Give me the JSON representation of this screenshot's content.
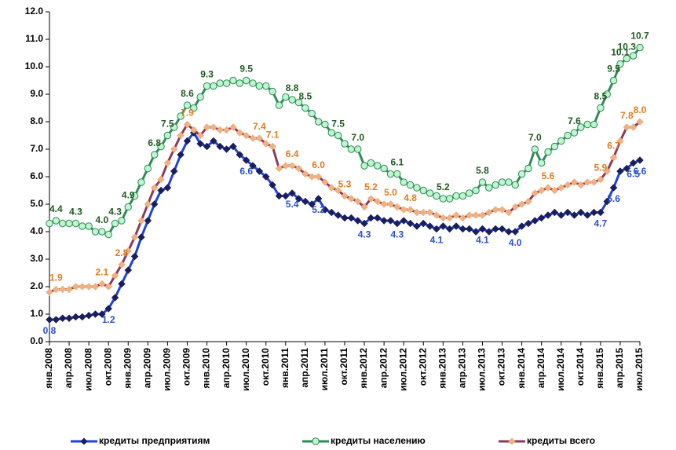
{
  "chart_data": {
    "type": "line",
    "categories": [
      "янв.2008",
      null,
      null,
      "апр.2008",
      null,
      null,
      "июл.2008",
      null,
      null,
      "окт.2008",
      null,
      null,
      "янв.2009",
      null,
      null,
      "апр.2009",
      null,
      null,
      "июл.2009",
      null,
      null,
      "окт.2009",
      null,
      null,
      "янв.2010",
      null,
      null,
      "апр.2010",
      null,
      null,
      "июл.2010",
      null,
      null,
      "окт.2010",
      null,
      null,
      "янв.2011",
      null,
      null,
      "апр.2011",
      null,
      null,
      "июл.2011",
      null,
      null,
      "окт.2011",
      null,
      null,
      "янв.2012",
      null,
      null,
      "апр.2012",
      null,
      null,
      "июл.2012",
      null,
      null,
      "окт.2012",
      null,
      null,
      "янв.2013",
      null,
      null,
      "апр.2013",
      null,
      null,
      "июл.2013",
      null,
      null,
      "окт.2013",
      null,
      null,
      "янв.2014",
      null,
      null,
      "апр.2014",
      null,
      null,
      "июл.2014",
      null,
      null,
      "окт.2014",
      null,
      null,
      "янв.2015",
      null,
      null,
      "апр.2015",
      null,
      null,
      "июл.2015"
    ],
    "ylim": [
      0,
      12
    ],
    "yticks": [
      {
        "value": 0,
        "label": "0.0"
      },
      {
        "value": 1,
        "label": "1.0"
      },
      {
        "value": 2,
        "label": "2.0"
      },
      {
        "value": 3,
        "label": "3.0"
      },
      {
        "value": 4,
        "label": "4.0"
      },
      {
        "value": 5,
        "label": "5.0"
      },
      {
        "value": 6,
        "label": "6.0"
      },
      {
        "value": 7,
        "label": "7.0"
      },
      {
        "value": 8,
        "label": "8.0"
      },
      {
        "value": 9,
        "label": "9.0"
      },
      {
        "value": 10,
        "label": "10.0"
      },
      {
        "value": 11,
        "label": "11.0"
      },
      {
        "value": 12,
        "label": "12.0"
      }
    ],
    "grid": false,
    "legend": "bottom",
    "series": [
      {
        "name": "кредиты предприятиям",
        "color": "#1f3fe0",
        "marker": "diamond",
        "marker_color": "#1a1f5a",
        "label_color": "#2a4fc8",
        "label_side": "below",
        "values": [
          0.8,
          0.8,
          0.85,
          0.85,
          0.9,
          0.9,
          0.95,
          1.0,
          1.0,
          1.2,
          1.6,
          2.1,
          2.6,
          3.1,
          3.8,
          4.4,
          5.0,
          5.5,
          5.6,
          6.2,
          6.8,
          7.3,
          7.6,
          7.2,
          7.1,
          7.3,
          7.1,
          7.0,
          7.1,
          6.8,
          6.6,
          6.4,
          6.2,
          6.0,
          5.7,
          5.3,
          5.3,
          5.4,
          5.2,
          5.1,
          5.0,
          5.2,
          4.8,
          4.7,
          4.6,
          4.5,
          4.5,
          4.4,
          4.3,
          4.5,
          4.5,
          4.4,
          4.4,
          4.3,
          4.4,
          4.3,
          4.2,
          4.3,
          4.2,
          4.1,
          4.2,
          4.1,
          4.2,
          4.1,
          4.1,
          4.0,
          4.1,
          4.0,
          4.1,
          4.1,
          4.0,
          4.0,
          4.2,
          4.3,
          4.4,
          4.5,
          4.6,
          4.7,
          4.6,
          4.7,
          4.6,
          4.7,
          4.6,
          4.7,
          4.7,
          5.1,
          5.6,
          6.2,
          6.3,
          6.5,
          6.6
        ],
        "value_labels": [
          "0.8",
          null,
          null,
          null,
          null,
          null,
          null,
          null,
          null,
          "1.2",
          null,
          null,
          null,
          null,
          null,
          null,
          null,
          null,
          null,
          null,
          null,
          null,
          null,
          null,
          null,
          null,
          null,
          null,
          null,
          null,
          "6.6",
          null,
          null,
          null,
          null,
          null,
          null,
          "5.4",
          null,
          null,
          null,
          "5.2",
          null,
          null,
          null,
          null,
          null,
          null,
          "4.3",
          null,
          null,
          null,
          null,
          "4.3",
          null,
          null,
          null,
          null,
          null,
          "4.1",
          null,
          null,
          null,
          null,
          null,
          null,
          "4.1",
          null,
          null,
          null,
          null,
          "4.0",
          null,
          null,
          null,
          null,
          null,
          null,
          null,
          null,
          null,
          null,
          null,
          null,
          "4.7",
          null,
          "5.6",
          null,
          null,
          "6.5",
          "6.6"
        ]
      },
      {
        "name": "кредиты населению",
        "color": "#2e8b57",
        "marker": "circle",
        "marker_color": "#bff5cf",
        "label_color": "#1f5a1f",
        "label_side": "above",
        "values": [
          4.3,
          4.4,
          4.3,
          4.3,
          4.3,
          4.2,
          4.2,
          4.0,
          4.0,
          3.9,
          4.3,
          4.4,
          4.9,
          5.3,
          5.8,
          6.3,
          6.8,
          7.1,
          7.5,
          7.8,
          8.2,
          8.6,
          8.5,
          8.9,
          9.3,
          9.3,
          9.4,
          9.4,
          9.5,
          9.4,
          9.5,
          9.4,
          9.3,
          9.3,
          9.1,
          8.6,
          8.9,
          8.8,
          8.7,
          8.5,
          8.3,
          8.0,
          7.9,
          7.6,
          7.5,
          7.2,
          7.0,
          7.0,
          6.4,
          6.5,
          6.4,
          6.3,
          6.1,
          6.1,
          5.8,
          5.7,
          5.6,
          5.5,
          5.4,
          5.3,
          5.2,
          5.2,
          5.3,
          5.3,
          5.4,
          5.5,
          5.8,
          5.6,
          5.7,
          5.8,
          5.8,
          5.7,
          6.1,
          6.3,
          7.0,
          6.5,
          6.9,
          7.1,
          7.3,
          7.5,
          7.6,
          7.8,
          7.9,
          7.9,
          8.5,
          9.0,
          9.5,
          10.1,
          10.3,
          10.4,
          10.7
        ],
        "value_labels": [
          null,
          "4.4",
          null,
          null,
          "4.3",
          null,
          null,
          null,
          "4.0",
          null,
          "4.3",
          null,
          "4.9",
          null,
          null,
          null,
          "6.8",
          null,
          "7.5",
          null,
          null,
          "8.6",
          null,
          null,
          "9.3",
          null,
          null,
          null,
          null,
          null,
          "9.5",
          null,
          null,
          null,
          null,
          null,
          null,
          "8.8",
          null,
          "8.5",
          null,
          null,
          null,
          null,
          "7.5",
          null,
          null,
          "7.0",
          null,
          null,
          null,
          null,
          null,
          "6.1",
          null,
          null,
          null,
          null,
          null,
          null,
          "5.2",
          null,
          null,
          null,
          null,
          null,
          "5.8",
          null,
          null,
          null,
          null,
          null,
          null,
          null,
          "7.0",
          null,
          null,
          null,
          null,
          null,
          "7.6",
          null,
          null,
          null,
          "8.5",
          null,
          "9.5",
          "10.1",
          "10.3",
          null,
          "10.7"
        ]
      },
      {
        "name": "кредиты всего",
        "color": "#8b3a5a",
        "marker": "diamond",
        "marker_color": "#f0b080",
        "label_color": "#e07b20",
        "label_side": "above",
        "values": [
          1.8,
          1.9,
          1.9,
          1.9,
          2.0,
          2.0,
          2.0,
          2.0,
          2.1,
          2.0,
          2.4,
          2.8,
          3.3,
          3.8,
          4.4,
          5.0,
          5.6,
          5.9,
          6.5,
          7.0,
          7.5,
          7.9,
          7.7,
          7.5,
          7.8,
          7.8,
          7.7,
          7.7,
          7.8,
          7.6,
          7.5,
          7.4,
          7.4,
          7.2,
          7.1,
          6.3,
          6.4,
          6.4,
          6.3,
          6.1,
          6.0,
          6.0,
          5.8,
          5.6,
          5.5,
          5.3,
          5.2,
          5.1,
          4.9,
          5.2,
          5.1,
          5.0,
          5.0,
          4.9,
          4.8,
          4.8,
          4.7,
          4.7,
          4.7,
          4.6,
          4.5,
          4.5,
          4.6,
          4.5,
          4.6,
          4.6,
          4.6,
          4.7,
          4.8,
          4.8,
          4.7,
          4.9,
          5.0,
          5.1,
          5.4,
          5.5,
          5.6,
          5.5,
          5.6,
          5.7,
          5.8,
          5.7,
          5.8,
          5.8,
          5.9,
          6.2,
          6.7,
          7.3,
          7.8,
          7.8,
          8.0
        ],
        "value_labels": [
          null,
          "1.9",
          null,
          null,
          null,
          null,
          null,
          null,
          "2.1",
          null,
          null,
          "2.8",
          null,
          null,
          null,
          null,
          null,
          null,
          null,
          null,
          null,
          "7.9",
          null,
          null,
          null,
          null,
          null,
          null,
          null,
          null,
          null,
          null,
          "7.4",
          null,
          "7.1",
          null,
          null,
          "6.4",
          null,
          null,
          null,
          "6.0",
          null,
          null,
          null,
          "5.3",
          null,
          null,
          null,
          "5.2",
          null,
          null,
          "5.0",
          null,
          null,
          "4.8",
          null,
          null,
          null,
          null,
          null,
          null,
          null,
          null,
          null,
          null,
          null,
          null,
          null,
          null,
          null,
          null,
          null,
          null,
          null,
          null,
          "5.6",
          null,
          null,
          null,
          null,
          null,
          null,
          null,
          "5.9",
          null,
          "6.7",
          null,
          "7.8",
          null,
          "8.0"
        ]
      }
    ]
  }
}
